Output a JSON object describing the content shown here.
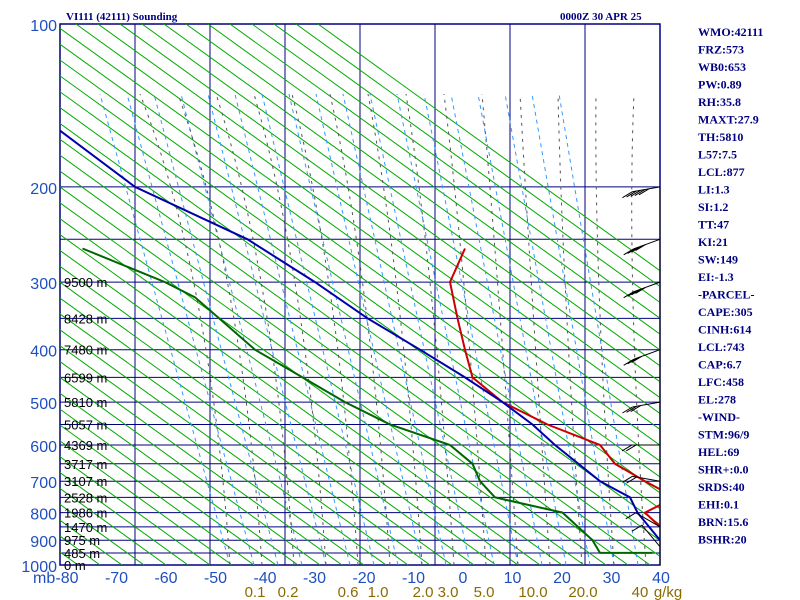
{
  "chart_data": {
    "type": "line",
    "title": "VI111 (42111) Sounding",
    "time_label": "0000Z 30 APR 25",
    "x_axis": {
      "unit_label": "mb",
      "range": [
        -80,
        0
      ],
      "ticks": [
        "-80",
        "-70",
        "-60",
        "-50",
        "-40",
        "-30",
        "-20",
        "-10",
        "0",
        "10",
        "20",
        "30",
        "40"
      ]
    },
    "y_axis": {
      "scale": "log",
      "range": [
        100,
        1000
      ],
      "ticks": [
        {
          "p": 100,
          "label": "100"
        },
        {
          "p": 200,
          "label": "200"
        },
        {
          "p": 300,
          "label": "300"
        },
        {
          "p": 400,
          "label": "400"
        },
        {
          "p": 500,
          "label": "500"
        },
        {
          "p": 600,
          "label": "600"
        },
        {
          "p": 700,
          "label": "700"
        },
        {
          "p": 800,
          "label": "800"
        },
        {
          "p": 900,
          "label": "900"
        },
        {
          "p": 1000,
          "label": "1000"
        }
      ]
    },
    "mixing_ratio_labels": [
      "0.1",
      "0.2",
      "0.6",
      "1.0",
      "2.0",
      "3.0",
      "5.0",
      "10.0",
      "20.0",
      "40",
      "g/kg"
    ],
    "height_labels": [
      {
        "p": 300,
        "label": "9500 m"
      },
      {
        "p": 350,
        "label": "8428 m"
      },
      {
        "p": 400,
        "label": "7480 m"
      },
      {
        "p": 450,
        "label": "6599 m"
      },
      {
        "p": 500,
        "label": "5810 m"
      },
      {
        "p": 550,
        "label": "5057 m"
      },
      {
        "p": 600,
        "label": "4369 m"
      },
      {
        "p": 650,
        "label": "3717 m"
      },
      {
        "p": 700,
        "label": "3107 m"
      },
      {
        "p": 750,
        "label": "2528 m"
      },
      {
        "p": 800,
        "label": "1986 m"
      },
      {
        "p": 850,
        "label": "1470 m"
      },
      {
        "p": 900,
        "label": "975 m"
      },
      {
        "p": 950,
        "label": "485 m"
      },
      {
        "p": 1000,
        "label": "0 m"
      }
    ],
    "series": [
      {
        "color": "#cc0000",
        "points": [
          [
            260,
            -26
          ],
          [
            300,
            -28
          ],
          [
            350,
            -27
          ],
          [
            400,
            -26
          ],
          [
            450,
            -25
          ],
          [
            500,
            -21
          ],
          [
            550,
            -15
          ],
          [
            600,
            -8
          ],
          [
            650,
            -6
          ],
          [
            700,
            -2
          ],
          [
            750,
            2
          ],
          [
            800,
            -2
          ],
          [
            850,
            0
          ],
          [
            900,
            2
          ],
          [
            940,
            5
          ],
          [
            950,
            3
          ]
        ]
      },
      {
        "color": "#006600",
        "points": [
          [
            260,
            -77
          ],
          [
            300,
            -66
          ],
          [
            320,
            -62
          ],
          [
            400,
            -54
          ],
          [
            500,
            -42
          ],
          [
            550,
            -36
          ],
          [
            600,
            -28
          ],
          [
            650,
            -25
          ],
          [
            700,
            -24
          ],
          [
            750,
            -22
          ],
          [
            800,
            -13
          ],
          [
            900,
            -9
          ],
          [
            950,
            -8
          ],
          [
            950,
            -1
          ]
        ]
      },
      {
        "color": "#0000aa",
        "points": [
          [
            150,
            -82
          ],
          [
            200,
            -70
          ],
          [
            250,
            -55
          ],
          [
            300,
            -46
          ],
          [
            350,
            -39
          ],
          [
            400,
            -32
          ],
          [
            450,
            -26
          ],
          [
            500,
            -21
          ],
          [
            550,
            -17
          ],
          [
            600,
            -14
          ],
          [
            700,
            -8
          ],
          [
            750,
            -4
          ],
          [
            800,
            -3
          ],
          [
            900,
            0
          ],
          [
            950,
            2
          ]
        ]
      }
    ],
    "indices": [
      "WMO:42111",
      "FRZ:573",
      "WB0:653",
      "PW:0.89",
      "RH:35.8",
      "MAXT:27.9",
      "TH:5810",
      "L57:7.5",
      "LCL:877",
      "LI:1.3",
      "SI:1.2",
      "TT:47",
      "KI:21",
      "SW:149",
      "EI:-1.3",
      "-PARCEL-",
      "CAPE:305",
      "CINH:614",
      "LCL:743",
      "CAP:6.7",
      "LFC:458",
      "EL:278",
      "-WIND-",
      "STM:96/9",
      "HEL:69",
      "SHR+:0.0",
      "SRDS:40",
      "EHI:0.1",
      "BRN:15.6",
      "BSHR:20"
    ],
    "winds": [
      {
        "p": 200,
        "dir": 260,
        "spd": 45
      },
      {
        "p": 250,
        "dir": 250,
        "spd": 40
      },
      {
        "p": 300,
        "dir": 250,
        "spd": 35
      },
      {
        "p": 400,
        "dir": 250,
        "spd": 30
      },
      {
        "p": 500,
        "dir": 260,
        "spd": 25
      },
      {
        "p": 600,
        "dir": 270,
        "spd": 20
      },
      {
        "p": 700,
        "dir": 280,
        "spd": 15
      },
      {
        "p": 850,
        "dir": 300,
        "spd": 10
      },
      {
        "p": 925,
        "dir": 320,
        "spd": 10
      }
    ],
    "colors": {
      "frame": "#000080",
      "isotherm": "#00008b",
      "dry_adiabat": "#00aa00",
      "moist_adiabat": "#555555",
      "mixing_ratio": "#3399ff",
      "tick_text": "#1f4fbf",
      "mixing_text": "#8b6b00"
    }
  }
}
